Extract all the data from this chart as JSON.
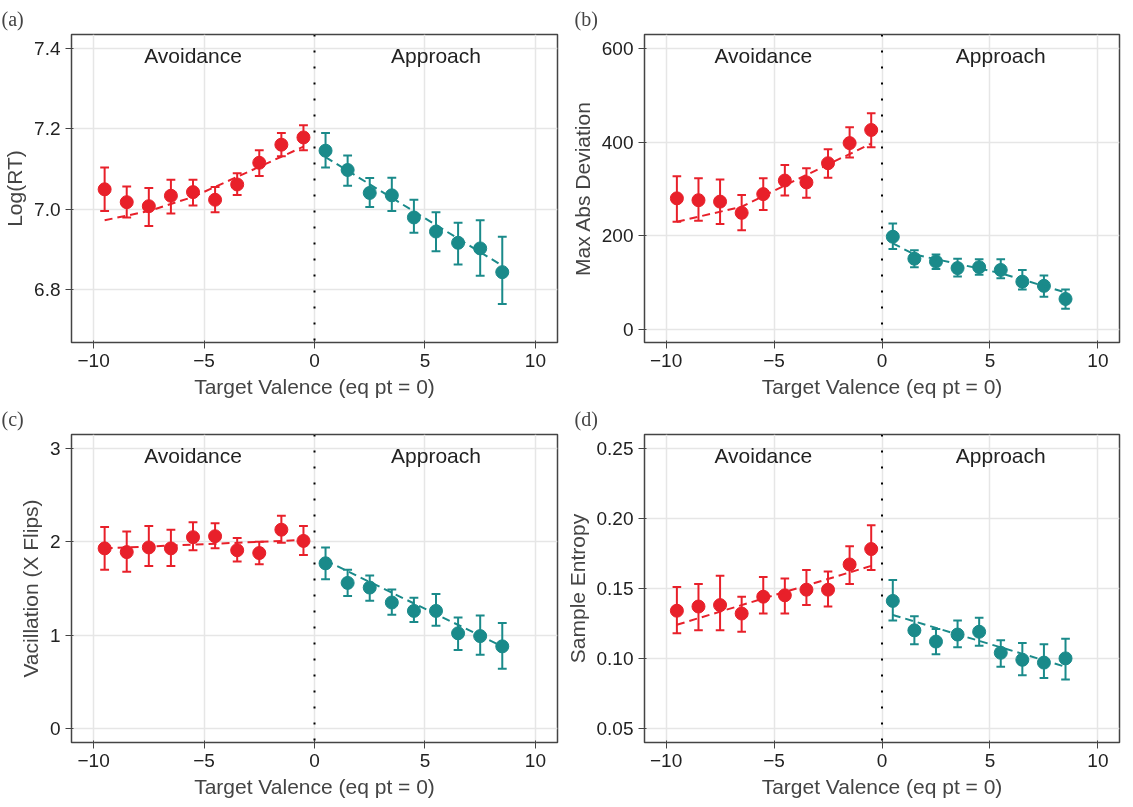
{
  "chart_data": [
    {
      "type": "scatter",
      "title": "(a)",
      "xlabel": "Target Valence (eq pt = 0)",
      "ylabel": "Log(RT)",
      "annotations": [
        "Avoidance",
        "Approach"
      ],
      "xlim": [
        -11,
        11
      ],
      "xticks": [
        -10,
        -5,
        0,
        5,
        10
      ],
      "ylim": [
        6.668,
        7.434
      ],
      "yticks": [
        6.8,
        {
          "value": 7.0,
          "label": "7.0"
        },
        7.2,
        7.4
      ],
      "grid": true,
      "marker": "circle",
      "ref_lines": [
        {
          "axis": "x",
          "value": 0,
          "color": "#000000",
          "line_style": "dotted"
        }
      ],
      "series": [
        {
          "color": "#e8202a",
          "x": [
            -9.5,
            -8.5,
            -7.5,
            -6.5,
            -5.5,
            -4.5,
            -3.5,
            -2.5,
            -1.5,
            -0.5
          ],
          "values": [
            7.049,
            7.017,
            7.007,
            7.033,
            7.042,
            7.023,
            7.061,
            7.115,
            7.16,
            7.178
          ],
          "errors": [
            [
              6.995,
              7.103
            ],
            [
              6.979,
              7.056
            ],
            [
              6.958,
              7.052
            ],
            [
              6.989,
              7.073
            ],
            [
              7.009,
              7.073
            ],
            [
              6.992,
              7.055
            ],
            [
              7.035,
              7.089
            ],
            [
              7.082,
              7.146
            ],
            [
              7.131,
              7.189
            ],
            [
              7.146,
              7.208
            ]
          ]
        },
        {
          "color": "#1a8a8a",
          "x": [
            0.5,
            1.5,
            2.5,
            3.5,
            4.5,
            5.5,
            6.5,
            7.5,
            8.5
          ],
          "values": [
            7.145,
            7.097,
            7.04,
            7.034,
            6.979,
            6.944,
            6.916,
            6.902,
            6.843
          ],
          "errors": [
            [
              7.103,
              7.189
            ],
            [
              7.058,
              7.133
            ],
            [
              7.005,
              7.077
            ],
            [
              6.995,
              7.078
            ],
            [
              6.941,
              7.023
            ],
            [
              6.895,
              6.992
            ],
            [
              6.862,
              6.966
            ],
            [
              6.834,
              6.972
            ],
            [
              6.764,
              6.931
            ]
          ]
        },
        {
          "type": "line",
          "marker": "none",
          "color": "#e8202a",
          "line_style": "dashed",
          "x": [
            -9.5,
            -7.5,
            -5.5,
            -3.5,
            -2.5,
            -1.5,
            -0.5
          ],
          "values": [
            6.972,
            6.995,
            7.03,
            7.08,
            7.105,
            7.13,
            7.155
          ]
        },
        {
          "type": "line",
          "marker": "none",
          "color": "#1a8a8a",
          "line_style": "dashed",
          "x": [
            0.5,
            8.5
          ],
          "values": [
            7.129,
            6.859
          ]
        }
      ]
    },
    {
      "type": "scatter",
      "title": "(b)",
      "xlabel": "Target Valence (eq pt = 0)",
      "ylabel": "Max Abs Deviation",
      "annotations": [
        "Avoidance",
        "Approach"
      ],
      "xlim": [
        -11,
        11
      ],
      "xticks": [
        -10,
        -5,
        0,
        5,
        10
      ],
      "ylim": [
        -28,
        630
      ],
      "yticks": [
        0,
        200,
        400,
        600
      ],
      "grid": true,
      "marker": "circle",
      "ref_lines": [
        {
          "axis": "x",
          "value": 0,
          "color": "#000000",
          "line_style": "dotted"
        }
      ],
      "series": [
        {
          "color": "#e8202a",
          "x": [
            -9.5,
            -8.5,
            -7.5,
            -6.5,
            -5.5,
            -4.5,
            -3.5,
            -2.5,
            -1.5,
            -0.5
          ],
          "values": [
            280,
            276,
            273,
            249,
            289,
            318,
            314,
            355,
            398,
            426
          ],
          "errors": [
            [
              230,
              327
            ],
            [
              232,
              323
            ],
            [
              225,
              320
            ],
            [
              212,
              287
            ],
            [
              255,
              323
            ],
            [
              286,
              351
            ],
            [
              281,
              344
            ],
            [
              324,
              385
            ],
            [
              367,
              432
            ],
            [
              389,
              462
            ]
          ]
        },
        {
          "color": "#1a8a8a",
          "x": [
            0.5,
            1.5,
            2.5,
            3.5,
            4.5,
            5.5,
            6.5,
            7.5,
            8.5
          ],
          "values": [
            198,
            151,
            145,
            131,
            133,
            127,
            102,
            93,
            65
          ],
          "errors": [
            [
              172,
              226
            ],
            [
              133,
              169
            ],
            [
              129,
              160
            ],
            [
              113,
              151
            ],
            [
              117,
              150
            ],
            [
              109,
              150
            ],
            [
              85,
              127
            ],
            [
              70,
              115
            ],
            [
              44,
              85
            ]
          ]
        },
        {
          "type": "line",
          "marker": "none",
          "color": "#e8202a",
          "line_style": "dashed",
          "x": [
            -9.5,
            -6.5,
            -3.5,
            -0.5
          ],
          "values": [
            230,
            262,
            330,
            397
          ]
        },
        {
          "type": "line",
          "marker": "none",
          "color": "#1a8a8a",
          "line_style": "dashed",
          "x": [
            0.5,
            1.5,
            3.5,
            5.5,
            8.5
          ],
          "values": [
            184,
            160,
            140,
            120,
            79
          ]
        }
      ]
    },
    {
      "type": "scatter",
      "title": "(c)",
      "xlabel": "Target Valence (eq pt = 0)",
      "ylabel": "Vacillation (X Flips)",
      "annotations": [
        "Avoidance",
        "Approach"
      ],
      "xlim": [
        -11,
        11
      ],
      "xticks": [
        -10,
        -5,
        0,
        5,
        10
      ],
      "ylim": [
        -0.15,
        3.15
      ],
      "yticks": [
        0,
        1,
        2,
        3
      ],
      "grid": true,
      "marker": "circle",
      "ref_lines": [
        {
          "axis": "x",
          "value": 0,
          "color": "#000000",
          "line_style": "dotted"
        }
      ],
      "series": [
        {
          "color": "#e8202a",
          "x": [
            -9.5,
            -8.5,
            -7.5,
            -6.5,
            -5.5,
            -4.5,
            -3.5,
            -2.5,
            -1.5,
            -0.5
          ],
          "values": [
            1.93,
            1.89,
            1.94,
            1.93,
            2.05,
            2.06,
            1.91,
            1.88,
            2.13,
            2.01
          ],
          "errors": [
            [
              1.7,
              2.16
            ],
            [
              1.68,
              2.11
            ],
            [
              1.74,
              2.17
            ],
            [
              1.74,
              2.13
            ],
            [
              1.91,
              2.21
            ],
            [
              1.93,
              2.2
            ],
            [
              1.79,
              2.04
            ],
            [
              1.76,
              2.0
            ],
            [
              1.99,
              2.28
            ],
            [
              1.86,
              2.17
            ]
          ]
        },
        {
          "color": "#1a8a8a",
          "x": [
            0.5,
            1.5,
            2.5,
            3.5,
            4.5,
            5.5,
            6.5,
            7.5,
            8.5
          ],
          "values": [
            1.77,
            1.56,
            1.51,
            1.35,
            1.26,
            1.26,
            1.02,
            0.99,
            0.88
          ],
          "errors": [
            [
              1.6,
              1.94
            ],
            [
              1.42,
              1.7
            ],
            [
              1.37,
              1.64
            ],
            [
              1.22,
              1.49
            ],
            [
              1.14,
              1.4
            ],
            [
              1.1,
              1.44
            ],
            [
              0.84,
              1.19
            ],
            [
              0.79,
              1.21
            ],
            [
              0.64,
              1.13
            ]
          ]
        },
        {
          "type": "line",
          "marker": "none",
          "color": "#e8202a",
          "line_style": "dashed",
          "x": [
            -9.5,
            -0.5
          ],
          "values": [
            1.93,
            2.02
          ]
        },
        {
          "type": "line",
          "marker": "none",
          "color": "#1a8a8a",
          "line_style": "dashed",
          "x": [
            0.5,
            8.5
          ],
          "values": [
            1.8,
            0.88
          ]
        }
      ]
    },
    {
      "type": "scatter",
      "title": "(d)",
      "xlabel": "Target Valence (eq pt = 0)",
      "ylabel": "Sample Entropy",
      "annotations": [
        "Avoidance",
        "Approach"
      ],
      "xlim": [
        -11,
        11
      ],
      "xticks": [
        -10,
        -5,
        0,
        5,
        10
      ],
      "ylim": [
        0.04,
        0.2597
      ],
      "yticks": [
        {
          "value": 0.05,
          "label": "0.05"
        },
        {
          "value": 0.1,
          "label": "0.10"
        },
        {
          "value": 0.15,
          "label": "0.15"
        },
        {
          "value": 0.2,
          "label": "0.20"
        },
        {
          "value": 0.25,
          "label": "0.25"
        }
      ],
      "grid": true,
      "marker": "circle",
      "ref_lines": [
        {
          "axis": "x",
          "value": 0,
          "color": "#000000",
          "line_style": "dotted"
        }
      ],
      "series": [
        {
          "color": "#e8202a",
          "x": [
            -9.5,
            -8.5,
            -7.5,
            -6.5,
            -5.5,
            -4.5,
            -3.5,
            -2.5,
            -1.5,
            -0.5
          ],
          "values": [
            0.134,
            0.137,
            0.138,
            0.132,
            0.144,
            0.145,
            0.149,
            0.149,
            0.167,
            0.178
          ],
          "errors": [
            [
              0.118,
              0.151
            ],
            [
              0.12,
              0.153
            ],
            [
              0.12,
              0.159
            ],
            [
              0.119,
              0.144
            ],
            [
              0.132,
              0.158
            ],
            [
              0.132,
              0.157
            ],
            [
              0.138,
              0.163
            ],
            [
              0.137,
              0.162
            ],
            [
              0.153,
              0.18
            ],
            [
              0.163,
              0.195
            ]
          ]
        },
        {
          "color": "#1a8a8a",
          "x": [
            0.5,
            1.5,
            2.5,
            3.5,
            4.5,
            5.5,
            6.5,
            7.5,
            8.5
          ],
          "values": [
            0.141,
            0.12,
            0.112,
            0.117,
            0.119,
            0.104,
            0.099,
            0.097,
            0.1
          ],
          "errors": [
            [
              0.127,
              0.156
            ],
            [
              0.11,
              0.13
            ],
            [
              0.103,
              0.121
            ],
            [
              0.108,
              0.127
            ],
            [
              0.109,
              0.129
            ],
            [
              0.094,
              0.113
            ],
            [
              0.088,
              0.111
            ],
            [
              0.086,
              0.11
            ],
            [
              0.085,
              0.114
            ]
          ]
        },
        {
          "type": "line",
          "marker": "none",
          "color": "#e8202a",
          "line_style": "dashed",
          "x": [
            -9.5,
            -0.5
          ],
          "values": [
            0.124,
            0.166
          ]
        },
        {
          "type": "line",
          "marker": "none",
          "color": "#1a8a8a",
          "line_style": "dashed",
          "x": [
            0.5,
            8.5
          ],
          "values": [
            0.131,
            0.094
          ]
        }
      ]
    }
  ]
}
